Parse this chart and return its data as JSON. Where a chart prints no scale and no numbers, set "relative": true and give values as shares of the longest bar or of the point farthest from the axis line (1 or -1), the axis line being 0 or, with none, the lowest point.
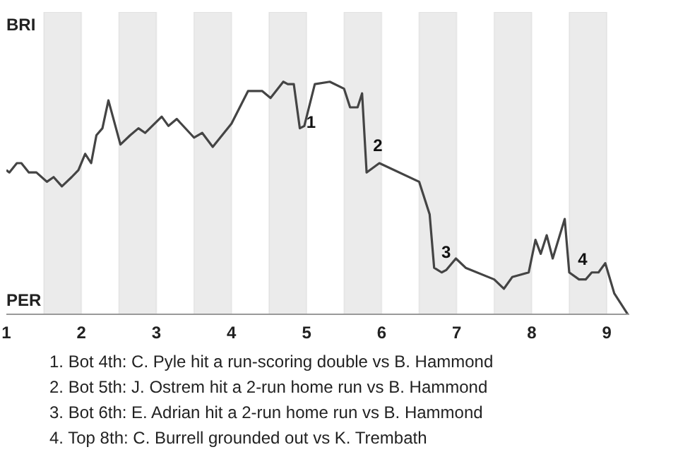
{
  "chart_data": {
    "type": "line",
    "relative": true,
    "xlim": [
      1,
      9.3
    ],
    "xticks": [
      1,
      2,
      3,
      4,
      5,
      6,
      7,
      8,
      9
    ],
    "line_style": "solid",
    "bands": [
      {
        "axis": "x",
        "from": 1.5,
        "to": 2,
        "color": "#ebebeb"
      },
      {
        "axis": "x",
        "from": 2.5,
        "to": 3,
        "color": "#ebebeb"
      },
      {
        "axis": "x",
        "from": 3.5,
        "to": 4,
        "color": "#ebebeb"
      },
      {
        "axis": "x",
        "from": 4.5,
        "to": 5,
        "color": "#ebebeb"
      },
      {
        "axis": "x",
        "from": 5.5,
        "to": 6,
        "color": "#ebebeb"
      },
      {
        "axis": "x",
        "from": 6.5,
        "to": 7,
        "color": "#ebebeb"
      },
      {
        "axis": "x",
        "from": 7.5,
        "to": 8,
        "color": "#ebebeb"
      },
      {
        "axis": "x",
        "from": 8.5,
        "to": 9,
        "color": "#ebebeb"
      }
    ],
    "series": [
      {
        "color": "#444444",
        "x": [
          1.0,
          1.04,
          1.14,
          1.2,
          1.3,
          1.4,
          1.54,
          1.63,
          1.74,
          1.87,
          1.96,
          2.05,
          2.13,
          2.2,
          2.28,
          2.36,
          2.52,
          2.65,
          2.76,
          2.85,
          3.07,
          3.16,
          3.27,
          3.5,
          3.61,
          3.75,
          4.0,
          4.22,
          4.33,
          4.41,
          4.52,
          4.69,
          4.75,
          4.83,
          4.91,
          4.97,
          5.11,
          5.31,
          5.5,
          5.58,
          5.68,
          5.74,
          5.8,
          5.97,
          6.5,
          6.64,
          6.7,
          6.8,
          6.86,
          6.99,
          7.12,
          7.5,
          7.63,
          7.74,
          7.96,
          8.05,
          8.12,
          8.2,
          8.28,
          8.44,
          8.5,
          8.63,
          8.72,
          8.8,
          8.89,
          8.98,
          9.1,
          9.28
        ],
        "values": [
          0.62,
          0.61,
          0.65,
          0.65,
          0.61,
          0.61,
          0.57,
          0.59,
          0.55,
          0.59,
          0.62,
          0.69,
          0.65,
          0.77,
          0.8,
          0.92,
          0.73,
          0.77,
          0.8,
          0.78,
          0.85,
          0.81,
          0.84,
          0.76,
          0.78,
          0.72,
          0.82,
          0.96,
          0.96,
          0.96,
          0.93,
          1,
          0.99,
          0.99,
          0.8,
          0.81,
          0.99,
          1,
          0.97,
          0.89,
          0.89,
          0.95,
          0.61,
          0.65,
          0.57,
          0.43,
          0.2,
          0.18,
          0.19,
          0.24,
          0.2,
          0.15,
          0.11,
          0.16,
          0.18,
          0.32,
          0.26,
          0.34,
          0.24,
          0.41,
          0.18,
          0.15,
          0.15,
          0.18,
          0.18,
          0.22,
          0.09,
          0
        ]
      }
    ],
    "annotations": [
      "BRI",
      "PER",
      {
        "text": "1",
        "x": 4.94,
        "y": 0.83
      },
      {
        "text": "2",
        "x": 5.83,
        "y": 0.73
      },
      {
        "text": "3",
        "x": 6.74,
        "y": 0.27
      },
      {
        "text": "4",
        "x": 8.56,
        "y": 0.24
      },
      "1. Bot 4th: C. Pyle hit a run-scoring double vs B. Hammond",
      "2. Bot 5th: J. Ostrem hit a 2-run home run vs B. Hammond",
      "3. Bot 6th: E. Adrian hit a 2-run home run vs B. Hammond",
      "4. Top 8th: C. Burrell grounded out vs K. Trembath"
    ]
  }
}
